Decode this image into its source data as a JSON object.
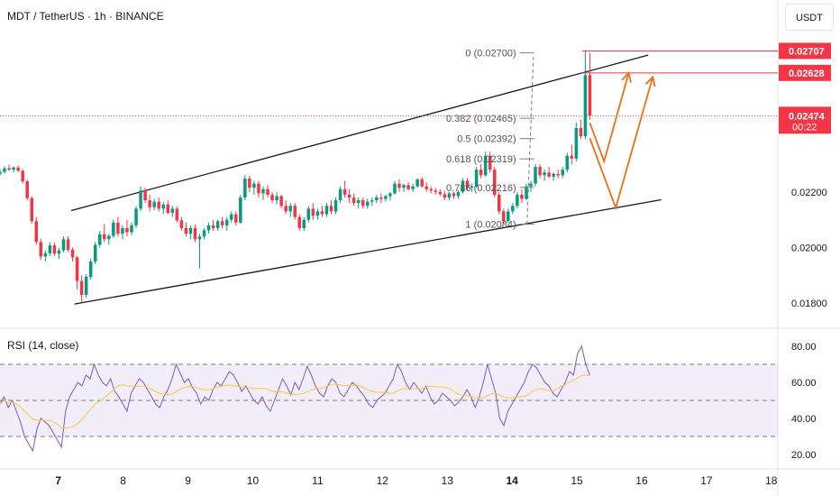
{
  "header": {
    "symbol_title": "MDT / TetherUS · 1h · BINANCE",
    "currency": "USDT"
  },
  "colors": {
    "up": "#089981",
    "down": "#f23645",
    "trendline": "#131722",
    "fib": "#787b86",
    "arrow": "#e8711a",
    "rsi_line": "#7e57c2",
    "rsi_ma": "#f7c948",
    "rsi_band": "#ede7f6"
  },
  "price_axis": {
    "ticks": [
      "0.02200",
      "0.02000",
      "0.01800"
    ],
    "badges": [
      {
        "label": "0.02707",
        "price": 0.02707
      },
      {
        "label": "0.02628",
        "price": 0.02628
      }
    ],
    "last_price": {
      "label": "0.02474",
      "countdown": "00:22",
      "price": 0.02474
    }
  },
  "time_axis": {
    "labels": [
      "7",
      "8",
      "9",
      "10",
      "11",
      "12",
      "13",
      "14",
      "15",
      "16",
      "17",
      "18"
    ],
    "bold": [
      "7",
      "14"
    ]
  },
  "fibonacci": [
    {
      "ratio": "0",
      "label": "0 (0.02700)",
      "price": 0.027
    },
    {
      "ratio": "0.382",
      "label": "0.382 (0.02465)",
      "price": 0.02465
    },
    {
      "ratio": "0.5",
      "label": "0.5 (0.02392)",
      "price": 0.02392
    },
    {
      "ratio": "0.618",
      "label": "0.618 (0.02319)",
      "price": 0.02319
    },
    {
      "ratio": "0.786",
      "label": "0.786 (0.02216)",
      "price": 0.02216
    },
    {
      "ratio": "1",
      "label": "1 (0.02084)",
      "price": 0.02084
    }
  ],
  "rsi": {
    "label": "RSI (14, close)",
    "ticks": [
      "80.00",
      "60.00",
      "40.00",
      "20.00"
    ],
    "upper_band": 70,
    "middle": 50,
    "lower_band": 30
  },
  "chart_data": {
    "type": "candlestick",
    "x_unit": "day",
    "xlim": [
      6.1,
      18.1
    ],
    "ylim": [
      0.0171,
      0.0289
    ],
    "candles": [
      [
        6.1,
        0.02265,
        0.02282,
        0.02258,
        0.02272
      ],
      [
        6.17,
        0.02272,
        0.02292,
        0.02266,
        0.02285
      ],
      [
        6.24,
        0.02285,
        0.02298,
        0.02275,
        0.0228
      ],
      [
        6.31,
        0.0228,
        0.02292,
        0.0227,
        0.02288
      ],
      [
        6.38,
        0.02288,
        0.02295,
        0.02272,
        0.02276
      ],
      [
        6.45,
        0.02276,
        0.02282,
        0.0223,
        0.02238
      ],
      [
        6.52,
        0.02238,
        0.02244,
        0.0217,
        0.02178
      ],
      [
        6.59,
        0.02178,
        0.02184,
        0.02085,
        0.02095
      ],
      [
        6.66,
        0.02095,
        0.0211,
        0.0201,
        0.0202
      ],
      [
        6.73,
        0.0202,
        0.02032,
        0.01955,
        0.01968
      ],
      [
        6.8,
        0.01968,
        0.0199,
        0.0195,
        0.0198
      ],
      [
        6.87,
        0.0198,
        0.0202,
        0.0197,
        0.02008
      ],
      [
        6.94,
        0.02008,
        0.02018,
        0.0197,
        0.01978
      ],
      [
        7.01,
        0.01978,
        0.02,
        0.0196,
        0.0199
      ],
      [
        7.08,
        0.0199,
        0.0204,
        0.01982,
        0.0203
      ],
      [
        7.15,
        0.0203,
        0.0204,
        0.01985,
        0.01992
      ],
      [
        7.22,
        0.01992,
        0.02,
        0.0195,
        0.01965
      ],
      [
        7.29,
        0.01965,
        0.0197,
        0.0185,
        0.0188
      ],
      [
        7.36,
        0.0188,
        0.019,
        0.01805,
        0.0183
      ],
      [
        7.43,
        0.0183,
        0.01905,
        0.0182,
        0.01895
      ],
      [
        7.5,
        0.01895,
        0.0196,
        0.01885,
        0.0195
      ],
      [
        7.57,
        0.0195,
        0.0202,
        0.0194,
        0.0201
      ],
      [
        7.64,
        0.0201,
        0.0206,
        0.02,
        0.02048
      ],
      [
        7.71,
        0.02048,
        0.02085,
        0.0202,
        0.0203
      ],
      [
        7.78,
        0.0203,
        0.0205,
        0.0201,
        0.02042
      ],
      [
        7.85,
        0.02042,
        0.021,
        0.02035,
        0.0209
      ],
      [
        7.92,
        0.0209,
        0.0211,
        0.0204,
        0.0205
      ],
      [
        7.99,
        0.0205,
        0.0208,
        0.0203,
        0.0207
      ],
      [
        8.06,
        0.0207,
        0.021,
        0.0204,
        0.02055
      ],
      [
        8.13,
        0.02055,
        0.0209,
        0.02045,
        0.0208
      ],
      [
        8.2,
        0.0208,
        0.0215,
        0.0207,
        0.0214
      ],
      [
        8.27,
        0.0214,
        0.0222,
        0.0213,
        0.02205
      ],
      [
        8.34,
        0.02205,
        0.02215,
        0.0216,
        0.0217
      ],
      [
        8.41,
        0.0217,
        0.0219,
        0.0213,
        0.02145
      ],
      [
        8.48,
        0.02145,
        0.02175,
        0.02135,
        0.02165
      ],
      [
        8.55,
        0.02165,
        0.0218,
        0.0213,
        0.0214
      ],
      [
        8.62,
        0.0214,
        0.02165,
        0.0212,
        0.02155
      ],
      [
        8.69,
        0.02155,
        0.0217,
        0.0212,
        0.02125
      ],
      [
        8.76,
        0.02125,
        0.0215,
        0.0211,
        0.0214
      ],
      [
        8.83,
        0.0214,
        0.02148,
        0.0209,
        0.02098
      ],
      [
        8.9,
        0.02098,
        0.0211,
        0.0206,
        0.0207
      ],
      [
        8.97,
        0.0207,
        0.0209,
        0.0204,
        0.0205
      ],
      [
        9.04,
        0.0205,
        0.0208,
        0.0203,
        0.0207
      ],
      [
        9.11,
        0.0207,
        0.02082,
        0.0202,
        0.0203
      ],
      [
        9.18,
        0.0203,
        0.0205,
        0.01925,
        0.0204
      ],
      [
        9.25,
        0.0204,
        0.0207,
        0.0203,
        0.02062
      ],
      [
        9.32,
        0.02062,
        0.0209,
        0.0205,
        0.0208
      ],
      [
        9.39,
        0.0208,
        0.021,
        0.0206,
        0.0207
      ],
      [
        9.46,
        0.0207,
        0.021,
        0.0206,
        0.02095
      ],
      [
        9.53,
        0.02095,
        0.0211,
        0.0207,
        0.0208
      ],
      [
        9.6,
        0.0208,
        0.0211,
        0.0206,
        0.021
      ],
      [
        9.67,
        0.021,
        0.0213,
        0.0209,
        0.0212
      ],
      [
        9.74,
        0.0212,
        0.0213,
        0.0208,
        0.0209
      ],
      [
        9.81,
        0.0209,
        0.0219,
        0.02085,
        0.0218
      ],
      [
        9.88,
        0.0218,
        0.0226,
        0.0217,
        0.02248
      ],
      [
        9.95,
        0.02248,
        0.02258,
        0.022,
        0.02215
      ],
      [
        10.02,
        0.02215,
        0.0224,
        0.0219,
        0.0223
      ],
      [
        10.09,
        0.0223,
        0.0224,
        0.0218,
        0.02195
      ],
      [
        10.16,
        0.02195,
        0.0222,
        0.0217,
        0.0221
      ],
      [
        10.23,
        0.0221,
        0.02225,
        0.0218,
        0.0219
      ],
      [
        10.3,
        0.0219,
        0.022,
        0.0216,
        0.0217
      ],
      [
        10.37,
        0.0217,
        0.022,
        0.02155,
        0.02185
      ],
      [
        10.44,
        0.02185,
        0.0219,
        0.0214,
        0.0215
      ],
      [
        10.51,
        0.0215,
        0.0217,
        0.0212,
        0.0213
      ],
      [
        10.58,
        0.0213,
        0.0216,
        0.0211,
        0.0215
      ],
      [
        10.65,
        0.0215,
        0.0216,
        0.021,
        0.0211
      ],
      [
        10.72,
        0.0211,
        0.0212,
        0.0206,
        0.0207
      ],
      [
        10.79,
        0.0207,
        0.0211,
        0.0206,
        0.021
      ],
      [
        10.86,
        0.021,
        0.0215,
        0.0209,
        0.0214
      ],
      [
        10.93,
        0.0214,
        0.0216,
        0.021,
        0.02115
      ],
      [
        11.0,
        0.02115,
        0.0214,
        0.021,
        0.0213
      ],
      [
        11.07,
        0.0213,
        0.0215,
        0.0211,
        0.0212
      ],
      [
        11.14,
        0.0212,
        0.0216,
        0.0211,
        0.0215
      ],
      [
        11.21,
        0.0215,
        0.0217,
        0.0212,
        0.0213
      ],
      [
        11.28,
        0.0213,
        0.0218,
        0.0212,
        0.0217
      ],
      [
        11.35,
        0.0217,
        0.0222,
        0.0216,
        0.0221
      ],
      [
        11.42,
        0.0221,
        0.0224,
        0.0218,
        0.0219
      ],
      [
        11.49,
        0.0219,
        0.0221,
        0.0216,
        0.0218
      ],
      [
        11.56,
        0.0218,
        0.02195,
        0.0215,
        0.0216
      ],
      [
        11.63,
        0.0216,
        0.0218,
        0.0214,
        0.0217
      ],
      [
        11.7,
        0.0217,
        0.0218,
        0.0214,
        0.0215
      ],
      [
        11.77,
        0.0215,
        0.02175,
        0.0214,
        0.02165
      ],
      [
        11.84,
        0.02165,
        0.0218,
        0.0215,
        0.0217
      ],
      [
        11.91,
        0.0217,
        0.0219,
        0.0216,
        0.0218
      ],
      [
        11.98,
        0.0218,
        0.02195,
        0.0216,
        0.02175
      ],
      [
        12.05,
        0.02175,
        0.0219,
        0.02165,
        0.02185
      ],
      [
        12.12,
        0.02185,
        0.022,
        0.0217,
        0.02195
      ],
      [
        12.19,
        0.02195,
        0.0224,
        0.0219,
        0.0223
      ],
      [
        12.26,
        0.0223,
        0.02245,
        0.022,
        0.02215
      ],
      [
        12.33,
        0.02215,
        0.0223,
        0.022,
        0.02225
      ],
      [
        12.4,
        0.02225,
        0.02235,
        0.02205,
        0.0221
      ],
      [
        12.47,
        0.0221,
        0.0223,
        0.022,
        0.0222
      ],
      [
        12.54,
        0.0222,
        0.0225,
        0.02215,
        0.02245
      ],
      [
        12.61,
        0.02245,
        0.02252,
        0.02215,
        0.0222
      ],
      [
        12.68,
        0.0222,
        0.02235,
        0.022,
        0.0221
      ],
      [
        12.75,
        0.0221,
        0.0222,
        0.02195,
        0.02205
      ],
      [
        12.82,
        0.02205,
        0.02215,
        0.0219,
        0.022
      ],
      [
        12.89,
        0.022,
        0.0221,
        0.02185,
        0.02192
      ],
      [
        12.96,
        0.02192,
        0.02205,
        0.0217,
        0.0218
      ],
      [
        13.03,
        0.0218,
        0.022,
        0.0217,
        0.02195
      ],
      [
        13.1,
        0.02195,
        0.022,
        0.02175,
        0.02185
      ],
      [
        13.17,
        0.02185,
        0.02205,
        0.02175,
        0.022
      ],
      [
        13.24,
        0.022,
        0.0225,
        0.02195,
        0.0224
      ],
      [
        13.31,
        0.0224,
        0.0225,
        0.02205,
        0.02215
      ],
      [
        13.38,
        0.02215,
        0.0223,
        0.022,
        0.0222
      ],
      [
        13.45,
        0.0222,
        0.0229,
        0.02215,
        0.0228
      ],
      [
        13.52,
        0.0228,
        0.023,
        0.0225,
        0.0226
      ],
      [
        13.59,
        0.0226,
        0.02345,
        0.02255,
        0.0233
      ],
      [
        13.66,
        0.0233,
        0.02345,
        0.0227,
        0.0228
      ],
      [
        13.73,
        0.0228,
        0.0229,
        0.0218,
        0.0219
      ],
      [
        13.8,
        0.0219,
        0.022,
        0.0212,
        0.0213
      ],
      [
        13.87,
        0.0213,
        0.0214,
        0.02085,
        0.02095
      ],
      [
        13.94,
        0.02095,
        0.0214,
        0.0209,
        0.0213
      ],
      [
        14.01,
        0.0213,
        0.0216,
        0.0212,
        0.0215
      ],
      [
        14.08,
        0.0215,
        0.022,
        0.0214,
        0.0219
      ],
      [
        14.15,
        0.0219,
        0.0221,
        0.0216,
        0.02175
      ],
      [
        14.22,
        0.02175,
        0.0223,
        0.0217,
        0.0222
      ],
      [
        14.29,
        0.0222,
        0.0224,
        0.022,
        0.0223
      ],
      [
        14.36,
        0.0223,
        0.023,
        0.0222,
        0.0229
      ],
      [
        14.43,
        0.0229,
        0.023,
        0.0225,
        0.0226
      ],
      [
        14.5,
        0.0226,
        0.0228,
        0.0224,
        0.0227
      ],
      [
        14.57,
        0.0227,
        0.0229,
        0.0225,
        0.02255
      ],
      [
        14.64,
        0.02255,
        0.0227,
        0.0224,
        0.02265
      ],
      [
        14.71,
        0.02265,
        0.0228,
        0.0225,
        0.0226
      ],
      [
        14.78,
        0.0226,
        0.0229,
        0.0225,
        0.0228
      ],
      [
        14.85,
        0.0228,
        0.0234,
        0.0227,
        0.0233
      ],
      [
        14.92,
        0.0233,
        0.0237,
        0.023,
        0.0232
      ],
      [
        14.99,
        0.0232,
        0.0245,
        0.0231,
        0.0243
      ],
      [
        15.06,
        0.0243,
        0.0246,
        0.0239,
        0.024
      ],
      [
        15.13,
        0.024,
        0.0271,
        0.0239,
        0.0262
      ],
      [
        15.2,
        0.0262,
        0.027,
        0.0246,
        0.02474
      ]
    ],
    "trendlines": [
      {
        "name": "upper-channel",
        "points": [
          [
            7.2,
            0.02133
          ],
          [
            16.1,
            0.02692
          ]
        ]
      },
      {
        "name": "lower-channel",
        "points": [
          [
            7.25,
            0.01797
          ],
          [
            16.3,
            0.02172
          ]
        ]
      }
    ],
    "horizontal_lines": [
      0.02707,
      0.02628
    ],
    "last_price_line": 0.02474,
    "projection_paths": [
      [
        [
          15.2,
          0.02448
        ],
        [
          15.42,
          0.0231
        ],
        [
          15.8,
          0.02628
        ]
      ],
      [
        [
          15.2,
          0.02393
        ],
        [
          15.6,
          0.02143
        ],
        [
          16.17,
          0.02613
        ]
      ]
    ],
    "rsi_series": [
      48,
      52,
      46,
      50,
      44,
      38,
      30,
      26,
      22,
      34,
      40,
      38,
      36,
      32,
      28,
      24,
      44,
      52,
      56,
      60,
      58,
      64,
      62,
      70,
      64,
      60,
      58,
      62,
      55,
      52,
      48,
      44,
      54,
      58,
      62,
      60,
      56,
      52,
      48,
      46,
      52,
      56,
      62,
      70,
      65,
      60,
      62,
      57,
      54,
      48,
      52,
      50,
      56,
      60,
      58,
      62,
      66,
      64,
      60,
      55,
      58,
      54,
      50,
      48,
      52,
      47,
      44,
      50,
      56,
      62,
      58,
      53,
      60,
      56,
      62,
      69,
      64,
      58,
      54,
      52,
      58,
      62,
      60,
      54,
      52,
      56,
      60,
      58,
      55,
      52,
      48,
      46,
      50,
      52,
      54,
      58,
      62,
      70,
      66,
      60,
      56,
      60,
      57,
      54,
      58,
      52,
      48,
      50,
      54,
      52,
      50,
      47,
      49,
      52,
      56,
      52,
      46,
      52,
      60,
      70,
      62,
      54,
      40,
      36,
      44,
      48,
      52,
      56,
      60,
      66,
      70,
      68,
      64,
      60,
      58,
      54,
      52,
      56,
      60,
      66,
      64,
      76,
      80,
      70,
      64
    ]
  }
}
